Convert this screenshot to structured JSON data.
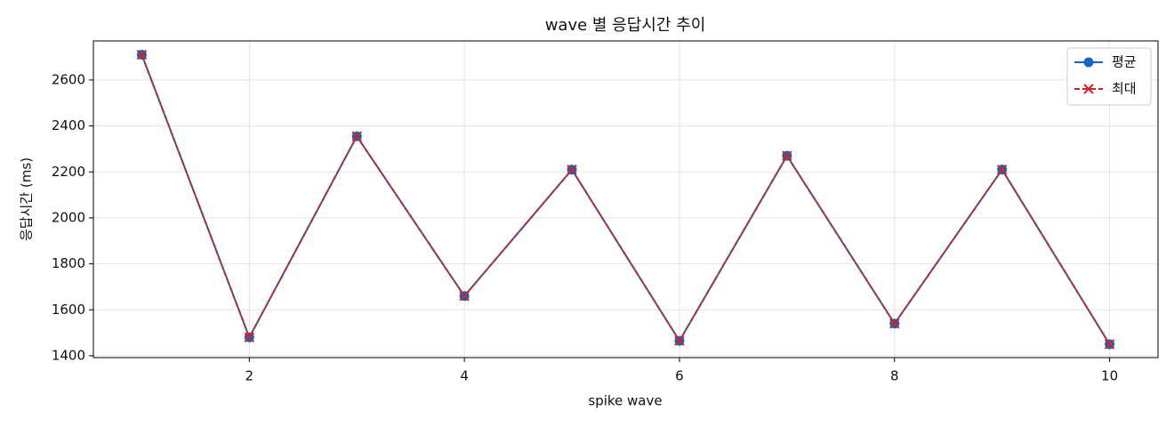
{
  "chart_data": {
    "type": "line",
    "title": "wave 별 응답시간 추이",
    "x_label": "spike wave",
    "y_label": "응답시간 (ms)",
    "x": [
      1,
      2,
      3,
      4,
      5,
      6,
      7,
      8,
      9,
      10
    ],
    "series": [
      {
        "name": "평균",
        "color": "#1565c0",
        "marker": "circle",
        "dash": false,
        "values": [
          2710,
          1480,
          2355,
          1660,
          2210,
          1465,
          2270,
          1540,
          2210,
          1450
        ]
      },
      {
        "name": "최대",
        "color": "#c62828",
        "marker": "x",
        "dash": true,
        "values": [
          2710,
          1480,
          2355,
          1660,
          2210,
          1465,
          2270,
          1540,
          2210,
          1450
        ]
      }
    ],
    "xlim": [
      0.55,
      10.45
    ],
    "xticks": [
      2,
      4,
      6,
      8,
      10
    ],
    "ylim": [
      1392,
      2770
    ],
    "yticks": [
      1400,
      1600,
      1800,
      2000,
      2200,
      2400,
      2600
    ],
    "grid": true,
    "legend": "upper right"
  }
}
